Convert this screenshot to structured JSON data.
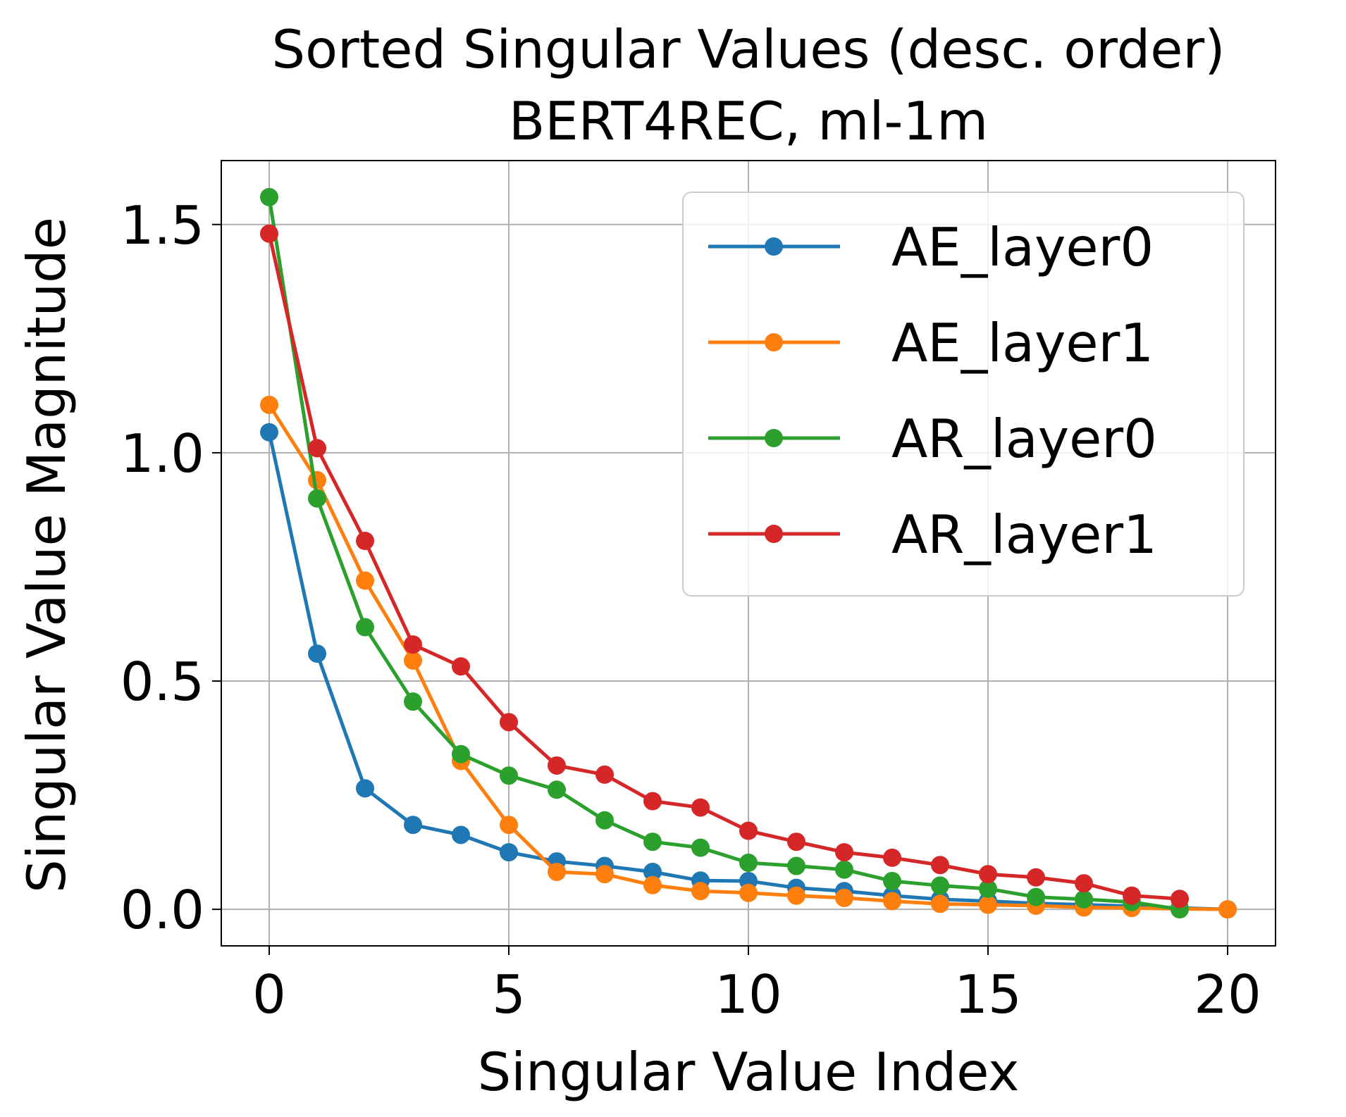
{
  "chart_data": {
    "type": "line",
    "title": "Sorted Singular Values (desc. order)",
    "subtitle": "BERT4REC, ml-1m",
    "xlabel": "Singular Value Index",
    "ylabel": "Singular Value Magnitude",
    "xlim": [
      -1,
      21
    ],
    "ylim": [
      -0.08,
      1.64
    ],
    "xticks": [
      0,
      5,
      10,
      15,
      20
    ],
    "xtick_labels": [
      "0",
      "5",
      "10",
      "15",
      "20"
    ],
    "yticks": [
      0.0,
      0.5,
      1.0,
      1.5
    ],
    "ytick_labels": [
      "0.0",
      "0.5",
      "1.0",
      "1.5"
    ],
    "grid": true,
    "legend_position": "top-right",
    "series": [
      {
        "name": "AE_layer0",
        "color": "#1f77b4",
        "x": [
          0,
          1,
          2,
          3,
          4,
          5,
          6,
          7,
          8,
          9,
          10,
          11,
          12,
          13,
          14,
          15,
          16,
          17,
          18,
          19,
          20
        ],
        "values": [
          1.045,
          0.56,
          0.265,
          0.185,
          0.163,
          0.125,
          0.105,
          0.095,
          0.082,
          0.063,
          0.062,
          0.047,
          0.04,
          0.03,
          0.022,
          0.018,
          0.013,
          0.01,
          0.007,
          0.003,
          0.0
        ]
      },
      {
        "name": "AE_layer1",
        "color": "#ff7f0e",
        "x": [
          0,
          1,
          2,
          3,
          4,
          5,
          6,
          7,
          8,
          9,
          10,
          11,
          12,
          13,
          14,
          15,
          16,
          17,
          18,
          19,
          20
        ],
        "values": [
          1.105,
          0.94,
          0.72,
          0.545,
          0.325,
          0.185,
          0.082,
          0.077,
          0.053,
          0.04,
          0.036,
          0.03,
          0.025,
          0.018,
          0.012,
          0.01,
          0.008,
          0.004,
          0.003,
          0.001,
          0.0
        ]
      },
      {
        "name": "AR_layer0",
        "color": "#2ca02c",
        "x": [
          0,
          1,
          2,
          3,
          4,
          5,
          6,
          7,
          8,
          9,
          10,
          11,
          12,
          13,
          14,
          15,
          16,
          17,
          18,
          19
        ],
        "values": [
          1.56,
          0.9,
          0.618,
          0.455,
          0.34,
          0.293,
          0.262,
          0.195,
          0.148,
          0.135,
          0.102,
          0.095,
          0.087,
          0.062,
          0.052,
          0.045,
          0.027,
          0.022,
          0.016,
          0.0
        ]
      },
      {
        "name": "AR_layer1",
        "color": "#d62728",
        "x": [
          0,
          1,
          2,
          3,
          4,
          5,
          6,
          7,
          8,
          9,
          10,
          11,
          12,
          13,
          14,
          15,
          16,
          17,
          18,
          19
        ],
        "values": [
          1.48,
          1.01,
          0.807,
          0.58,
          0.532,
          0.41,
          0.315,
          0.295,
          0.237,
          0.223,
          0.172,
          0.148,
          0.125,
          0.113,
          0.097,
          0.077,
          0.07,
          0.057,
          0.03,
          0.023
        ]
      }
    ]
  }
}
